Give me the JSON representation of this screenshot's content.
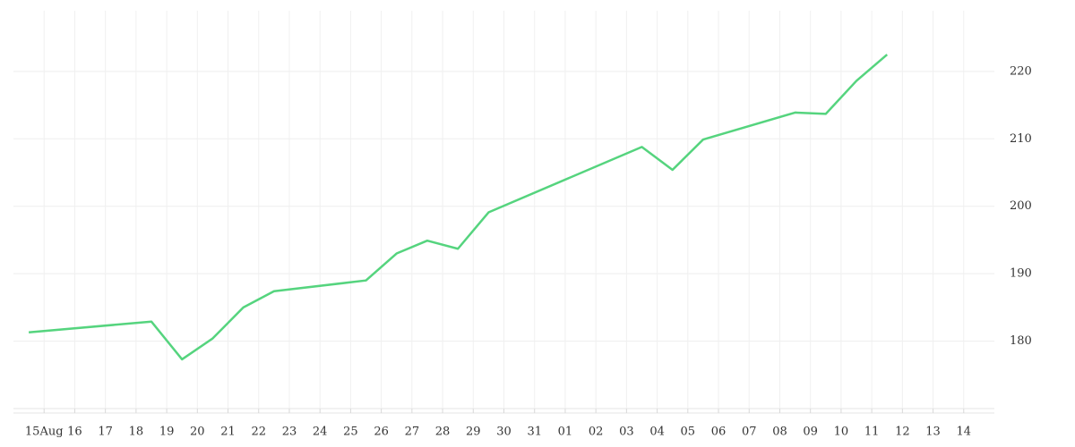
{
  "chart_data": {
    "type": "line",
    "x": [
      -0.5,
      3.5,
      4.5,
      5.5,
      6.5,
      7.5,
      10.5,
      11.5,
      12.5,
      13.5,
      14.5,
      19.5,
      20.5,
      21.5,
      24.5,
      25.5,
      26.5,
      27.5
    ],
    "series": [
      {
        "color": "#55d47e",
        "values": [
          181.3,
          182.9,
          177.3,
          180.4,
          185.0,
          187.4,
          189.0,
          193.0,
          194.9,
          193.7,
          199.1,
          208.8,
          205.4,
          209.9,
          213.9,
          213.7,
          218.6,
          222.5
        ]
      }
    ],
    "xlim": [
      -1,
      31
    ],
    "xticks": [
      {
        "value": 0,
        "label": "15Aug"
      },
      {
        "value": 1,
        "label": "16"
      },
      {
        "value": 2,
        "label": "17"
      },
      {
        "value": 3,
        "label": "18"
      },
      {
        "value": 4,
        "label": "19"
      },
      {
        "value": 5,
        "label": "20"
      },
      {
        "value": 6,
        "label": "21"
      },
      {
        "value": 7,
        "label": "22"
      },
      {
        "value": 8,
        "label": "23"
      },
      {
        "value": 9,
        "label": "24"
      },
      {
        "value": 10,
        "label": "25"
      },
      {
        "value": 11,
        "label": "26"
      },
      {
        "value": 12,
        "label": "27"
      },
      {
        "value": 13,
        "label": "28"
      },
      {
        "value": 14,
        "label": "29"
      },
      {
        "value": 15,
        "label": "30"
      },
      {
        "value": 16,
        "label": "31"
      },
      {
        "value": 17,
        "label": "01"
      },
      {
        "value": 18,
        "label": "02"
      },
      {
        "value": 19,
        "label": "03"
      },
      {
        "value": 20,
        "label": "04"
      },
      {
        "value": 21,
        "label": "05"
      },
      {
        "value": 22,
        "label": "06"
      },
      {
        "value": 23,
        "label": "07"
      },
      {
        "value": 24,
        "label": "08"
      },
      {
        "value": 25,
        "label": "09"
      },
      {
        "value": 26,
        "label": "10"
      },
      {
        "value": 27,
        "label": "11"
      },
      {
        "value": 28,
        "label": "12"
      },
      {
        "value": 29,
        "label": "13"
      },
      {
        "value": 30,
        "label": "14"
      }
    ],
    "ylim": [
      170,
      229
    ],
    "yticks": [
      180,
      190,
      200,
      210,
      220
    ],
    "grid": true
  }
}
